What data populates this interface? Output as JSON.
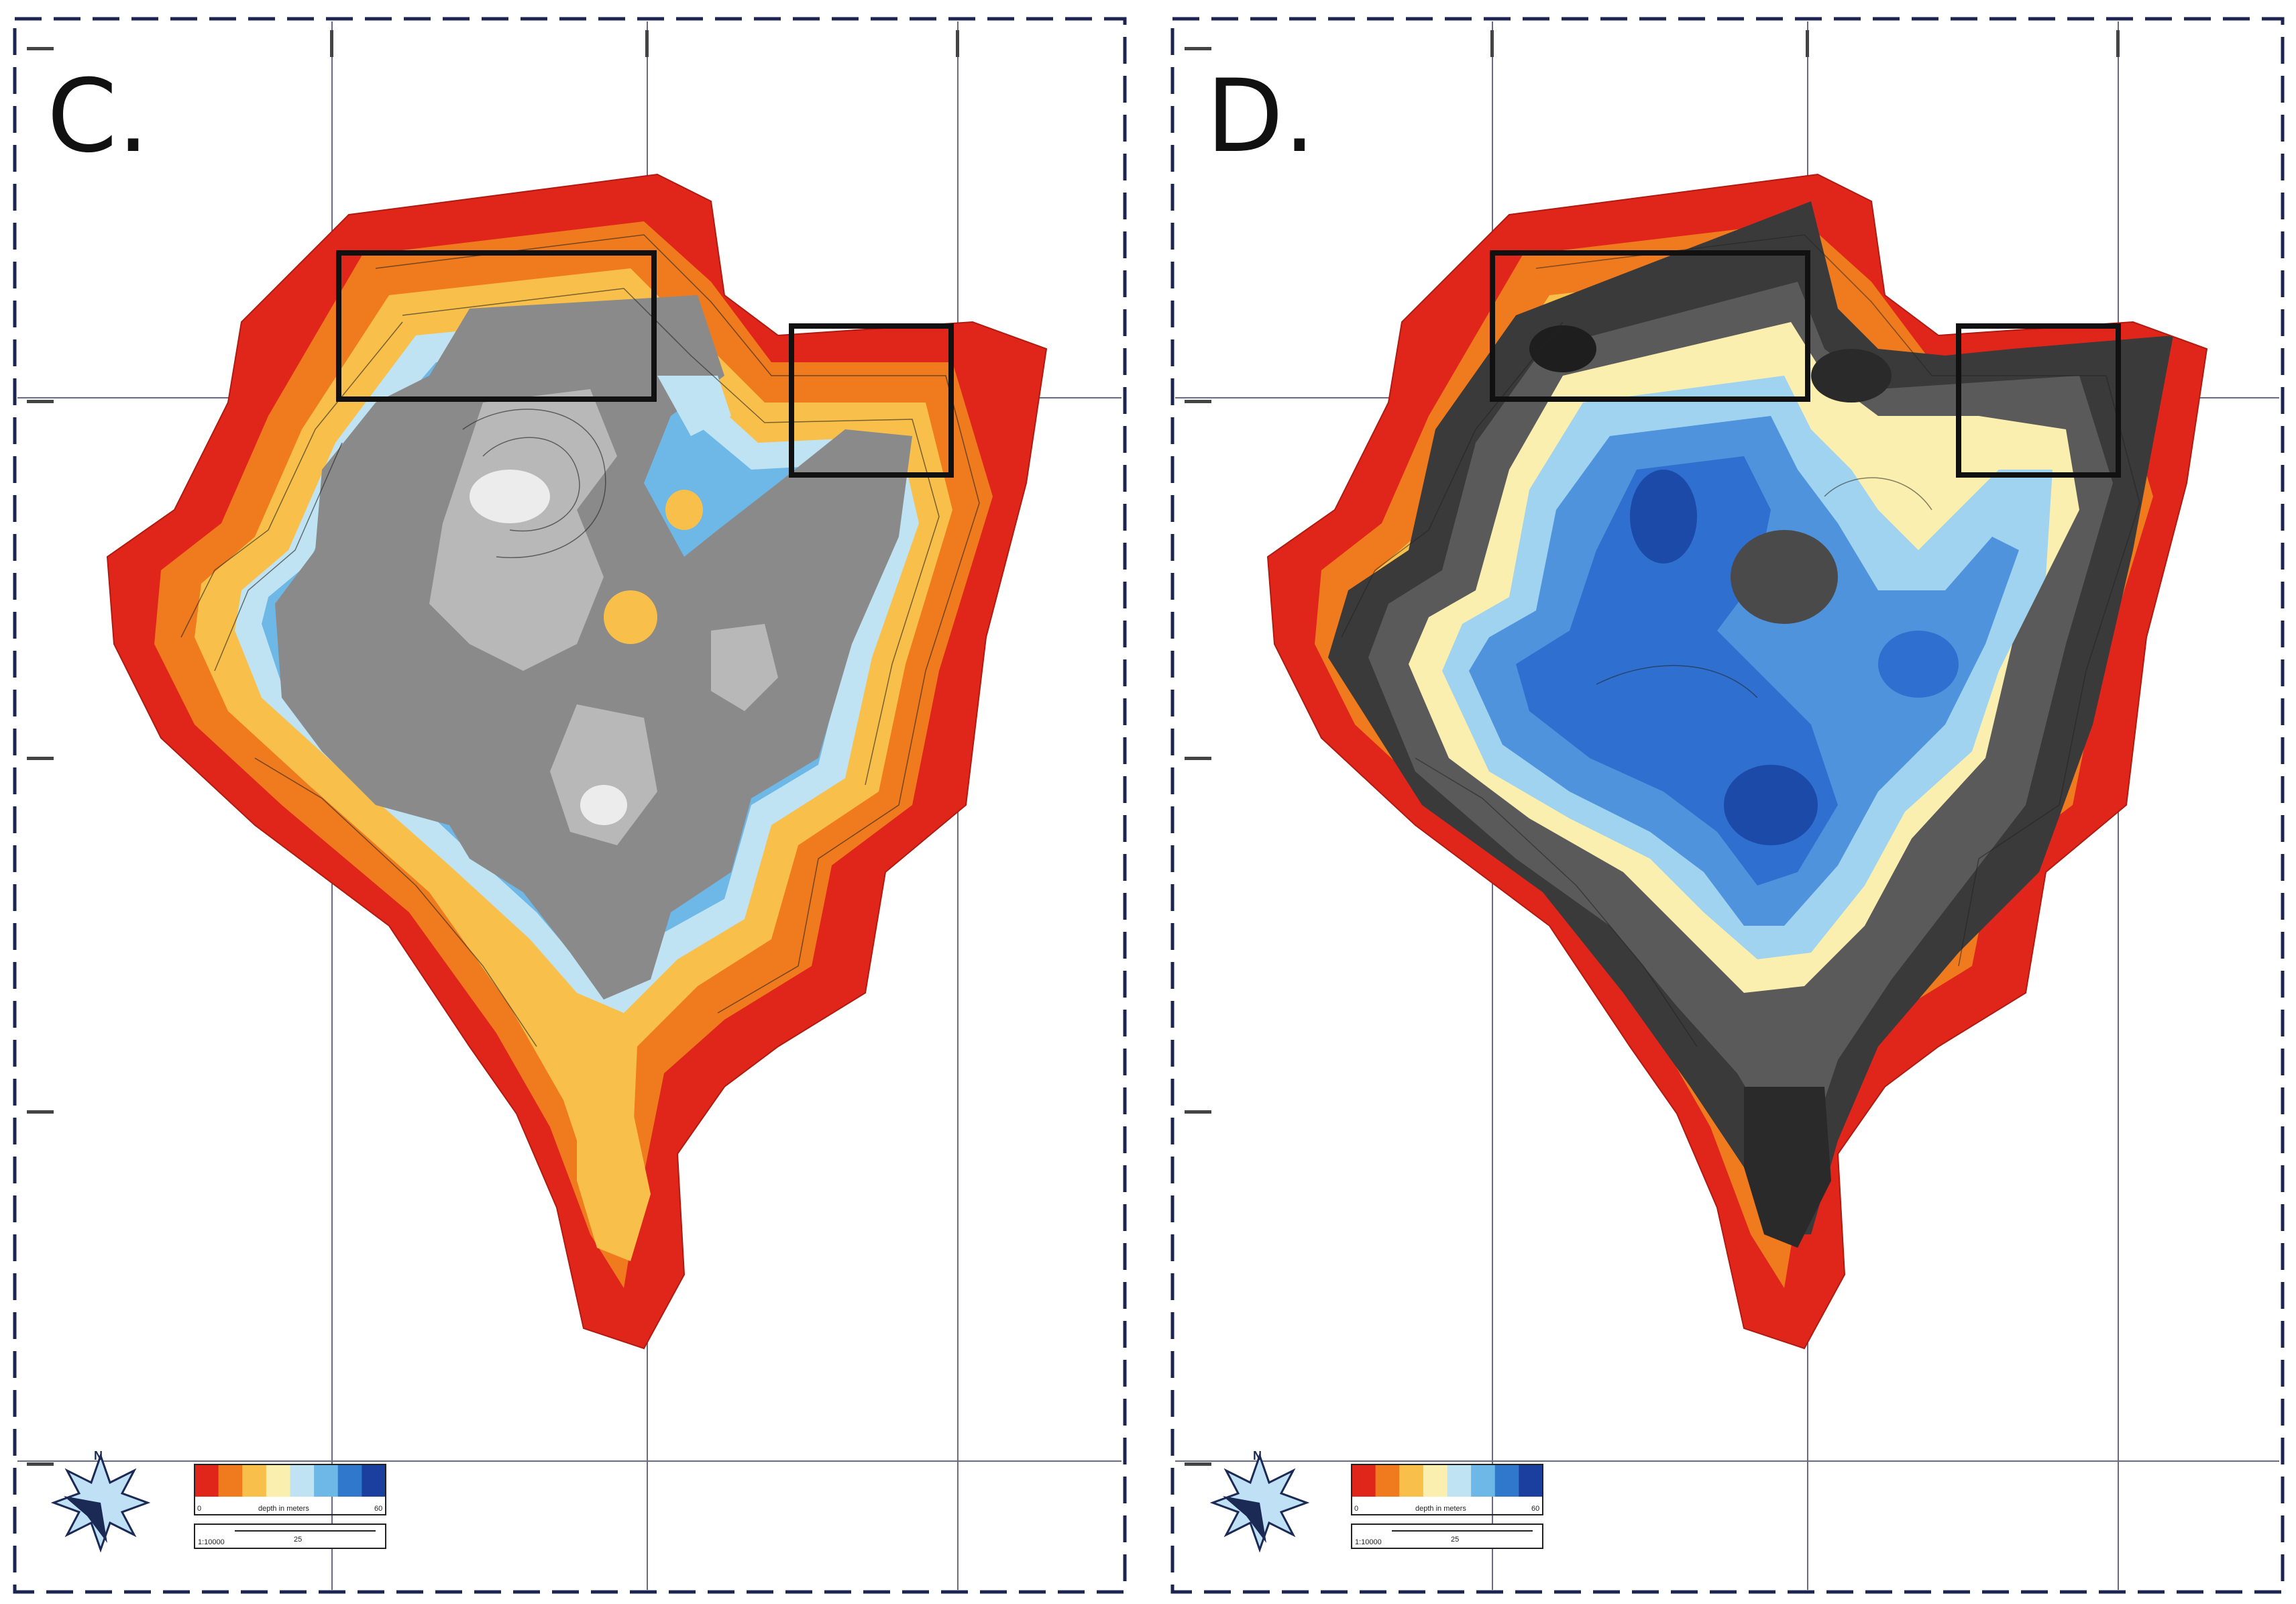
{
  "panels": [
    {
      "letter": "C.",
      "legend": {
        "min": "0",
        "max": "60",
        "label": "depth in meters",
        "scale_text": "1:10000",
        "scale_mid": "25",
        "colors": [
          "#e0261a",
          "#f07a1e",
          "#f8c04a",
          "#fbefb0",
          "#bfe3f2",
          "#6db8e6",
          "#2f78cc",
          "#1b3f9e"
        ]
      },
      "north_label": "N",
      "core_fill": "gray"
    },
    {
      "letter": "D.",
      "legend": {
        "min": "0",
        "max": "60",
        "label": "depth in meters",
        "scale_text": "1:10000",
        "scale_mid": "25",
        "colors": [
          "#e0261a",
          "#f07a1e",
          "#f8c04a",
          "#fbefb0",
          "#bfe3f2",
          "#6db8e6",
          "#2f78cc",
          "#1b3f9e"
        ]
      },
      "north_label": "N",
      "core_fill": "blue"
    }
  ],
  "colors": {
    "frame": "#1c2450",
    "grid": "#6a6a80",
    "shallow": "#e0261a",
    "orange": "#f07a1e",
    "yellow": "#f8c04a",
    "lightblue": "#9fd3ef",
    "gray_core": "#8a8a8a",
    "gray_light": "#d9d9d9",
    "blue_core": "#2f6fcf",
    "blue_deep": "#1b4aa8",
    "dark_ring": "#3a3a3a"
  }
}
